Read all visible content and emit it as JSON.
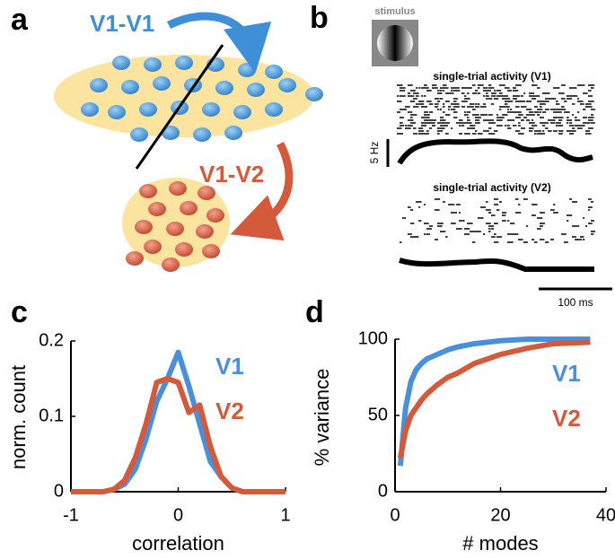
{
  "panel_labels": [
    "a",
    "b",
    "c",
    "d"
  ],
  "panel_a": {
    "arrow_labels": [
      "V1-V1",
      "V1-V2"
    ]
  },
  "panel_b": {
    "stimulus": "stimulus",
    "raster_titles": [
      "single-trial activity (V1)",
      "single-trial activity (V2)"
    ],
    "rate_scale": "5 Hz",
    "time_scale": "100 ms"
  },
  "chart_data": [
    {
      "type": "line",
      "xlabel": "correlation",
      "ylabel": "norm. count",
      "x": [
        -1,
        -0.9,
        -0.8,
        -0.7,
        -0.6,
        -0.5,
        -0.4,
        -0.3,
        -0.2,
        -0.1,
        0,
        0.1,
        0.2,
        0.3,
        0.4,
        0.5,
        0.6,
        0.7,
        0.8,
        0.9,
        1
      ],
      "xlim": [
        -1,
        1
      ],
      "xticks": [
        -1,
        0,
        1
      ],
      "ylim": [
        0,
        0.2
      ],
      "yticks": [
        0,
        0.1,
        0.2
      ],
      "series": [
        {
          "name": "V1",
          "color": "#4a90d9",
          "values": [
            0,
            0,
            0,
            0,
            0.003,
            0.01,
            0.03,
            0.07,
            0.12,
            0.15,
            0.185,
            0.14,
            0.09,
            0.04,
            0.02,
            0.005,
            0,
            0,
            0,
            0,
            0
          ]
        },
        {
          "name": "V2",
          "color": "#d35a3a",
          "values": [
            0,
            0,
            0,
            0,
            0.003,
            0.015,
            0.045,
            0.09,
            0.145,
            0.15,
            0.145,
            0.105,
            0.115,
            0.06,
            0.02,
            0.005,
            0,
            0,
            0,
            0,
            0
          ]
        }
      ]
    },
    {
      "type": "line",
      "xlabel": "# modes",
      "ylabel": "% variance",
      "x": [
        1,
        2,
        3,
        4,
        5,
        6,
        8,
        10,
        12,
        15,
        20,
        25,
        30,
        37
      ],
      "xlim": [
        0,
        40
      ],
      "xticks": [
        0,
        20,
        40
      ],
      "ylim": [
        0,
        100
      ],
      "yticks": [
        0,
        50,
        100
      ],
      "series": [
        {
          "name": "V1",
          "color": "#4a90d9",
          "values": [
            17,
            55,
            72,
            80,
            84,
            87,
            90,
            93,
            95,
            97,
            99,
            100,
            100,
            100
          ]
        },
        {
          "name": "V2",
          "color": "#d35a3a",
          "values": [
            22,
            40,
            50,
            55,
            60,
            64,
            70,
            75,
            78,
            84,
            90,
            94,
            97,
            98
          ]
        }
      ]
    }
  ]
}
